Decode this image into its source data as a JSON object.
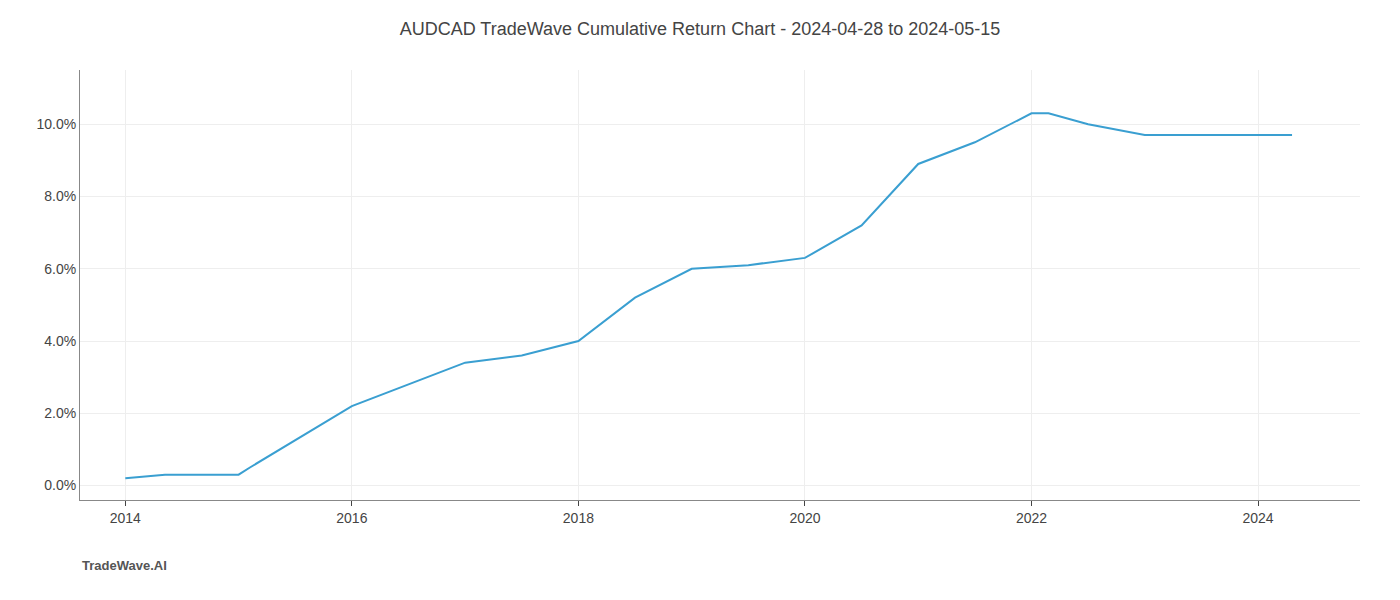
{
  "chart_data": {
    "type": "line",
    "title": "AUDCAD TradeWave Cumulative Return Chart - 2024-04-28 to 2024-05-15",
    "annotations": [
      "TradeWave.AI"
    ],
    "x": [
      2014,
      2014.35,
      2015,
      2015.1,
      2016,
      2016.5,
      2017,
      2017.5,
      2018,
      2018.5,
      2019,
      2019.5,
      2020,
      2020.5,
      2021,
      2021.5,
      2022,
      2022.15,
      2022.5,
      2023,
      2023.5,
      2024,
      2024.3
    ],
    "values": [
      0.002,
      0.003,
      0.003,
      0.005,
      0.022,
      0.028,
      0.034,
      0.036,
      0.04,
      0.052,
      0.06,
      0.061,
      0.063,
      0.072,
      0.089,
      0.095,
      0.103,
      0.103,
      0.1,
      0.097,
      0.097,
      0.097,
      0.097
    ],
    "color": "#3a9fd1",
    "xlim": [
      2013.6,
      2024.9
    ],
    "ylim": [
      -0.004,
      0.115
    ],
    "xticks": [
      2014,
      2016,
      2018,
      2020,
      2022,
      2024
    ],
    "yticks": [
      {
        "value": 0.0,
        "label": "0.0%"
      },
      {
        "value": 0.02,
        "label": "2.0%"
      },
      {
        "value": 0.04,
        "label": "4.0%"
      },
      {
        "value": 0.06,
        "label": "6.0%"
      },
      {
        "value": 0.08,
        "label": "8.0%"
      },
      {
        "value": 0.1,
        "label": "10.0%"
      }
    ],
    "grid": true
  }
}
